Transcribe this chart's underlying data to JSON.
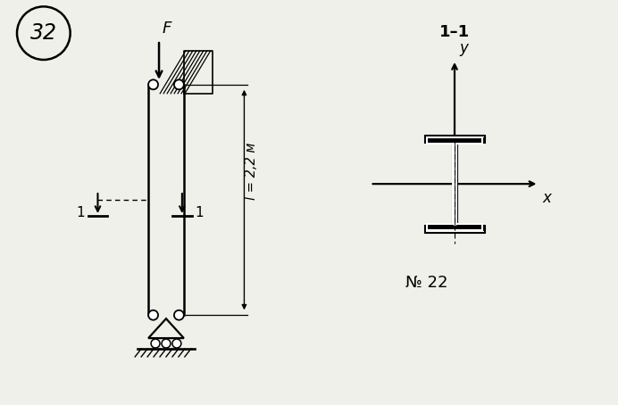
{
  "bg_color": "#f0f0ea",
  "circle_number": "32",
  "label_length": "l = 2,2 м",
  "section_label": "1–1",
  "section_number": "№ 22",
  "force_label": "F"
}
